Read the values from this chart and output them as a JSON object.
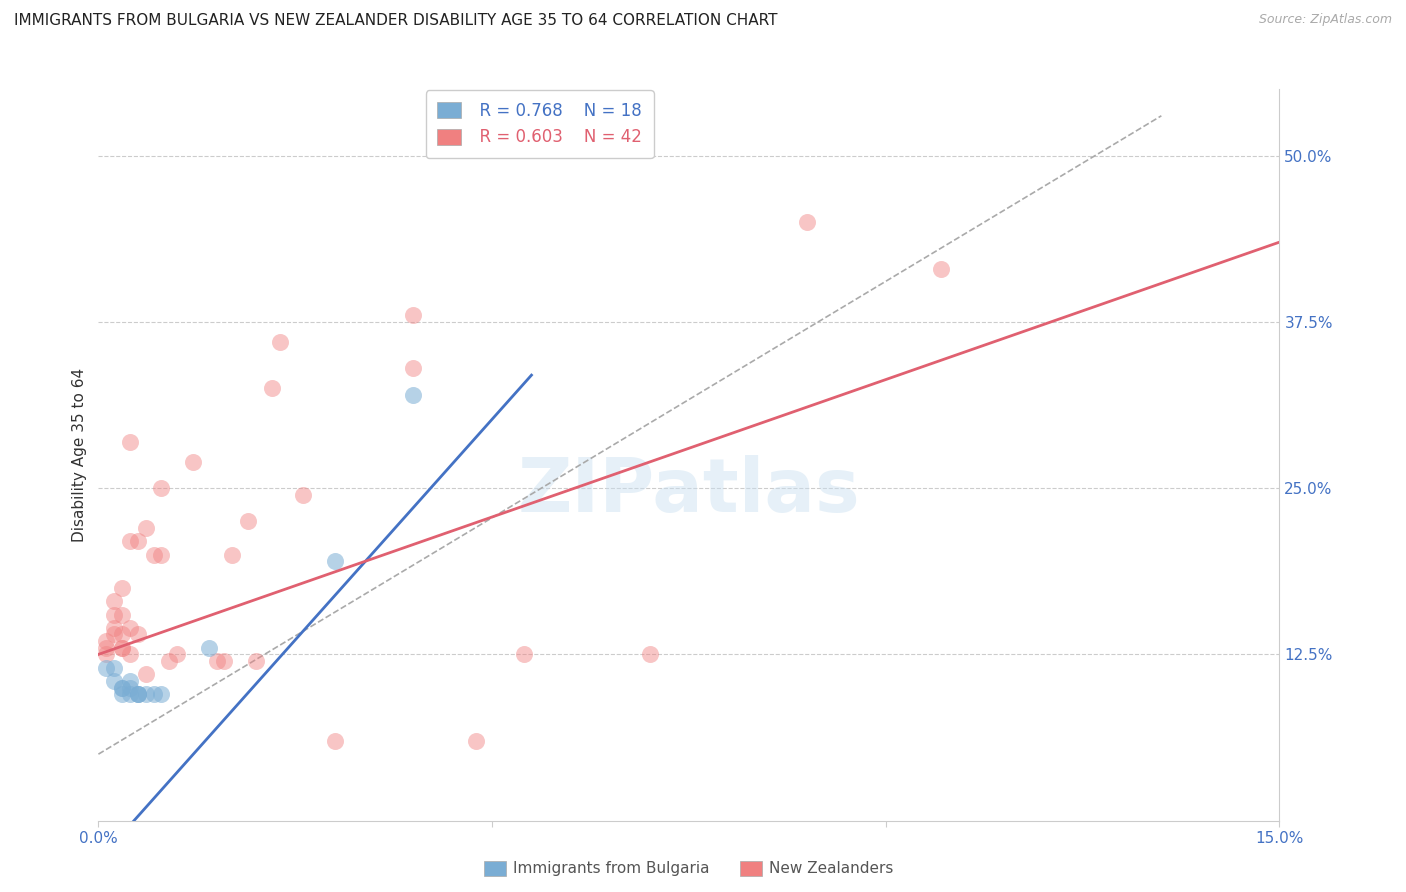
{
  "title": "IMMIGRANTS FROM BULGARIA VS NEW ZEALANDER DISABILITY AGE 35 TO 64 CORRELATION CHART",
  "source": "Source: ZipAtlas.com",
  "ylabel": "Disability Age 35 to 64",
  "xlim": [
    0.0,
    0.15
  ],
  "ylim": [
    0.0,
    0.55
  ],
  "x_ticks": [
    0.0,
    0.05,
    0.1,
    0.15
  ],
  "x_tick_labels": [
    "0.0%",
    "",
    "",
    "15.0%"
  ],
  "y_ticks_right": [
    0.0,
    0.125,
    0.25,
    0.375,
    0.5
  ],
  "y_tick_labels_right": [
    "",
    "12.5%",
    "25.0%",
    "37.5%",
    "50.0%"
  ],
  "legend_r1": "R = 0.768",
  "legend_n1": "N = 18",
  "legend_r2": "R = 0.603",
  "legend_n2": "N = 42",
  "legend_label1": "Immigrants from Bulgaria",
  "legend_label2": "New Zealanders",
  "blue_color": "#7aadd4",
  "pink_color": "#f08080",
  "blue_line_color": "#4472c4",
  "pink_line_color": "#e06070",
  "blue_scatter": [
    [
      0.001,
      0.115
    ],
    [
      0.002,
      0.115
    ],
    [
      0.002,
      0.105
    ],
    [
      0.003,
      0.1
    ],
    [
      0.003,
      0.1
    ],
    [
      0.003,
      0.095
    ],
    [
      0.004,
      0.105
    ],
    [
      0.004,
      0.1
    ],
    [
      0.004,
      0.095
    ],
    [
      0.005,
      0.095
    ],
    [
      0.005,
      0.095
    ],
    [
      0.005,
      0.095
    ],
    [
      0.006,
      0.095
    ],
    [
      0.007,
      0.095
    ],
    [
      0.008,
      0.095
    ],
    [
      0.014,
      0.13
    ],
    [
      0.03,
      0.195
    ],
    [
      0.04,
      0.32
    ]
  ],
  "pink_scatter": [
    [
      0.001,
      0.13
    ],
    [
      0.001,
      0.125
    ],
    [
      0.001,
      0.135
    ],
    [
      0.002,
      0.155
    ],
    [
      0.002,
      0.14
    ],
    [
      0.002,
      0.145
    ],
    [
      0.002,
      0.165
    ],
    [
      0.003,
      0.13
    ],
    [
      0.003,
      0.13
    ],
    [
      0.003,
      0.14
    ],
    [
      0.003,
      0.155
    ],
    [
      0.003,
      0.175
    ],
    [
      0.004,
      0.125
    ],
    [
      0.004,
      0.145
    ],
    [
      0.004,
      0.21
    ],
    [
      0.004,
      0.285
    ],
    [
      0.005,
      0.14
    ],
    [
      0.005,
      0.21
    ],
    [
      0.006,
      0.11
    ],
    [
      0.006,
      0.22
    ],
    [
      0.007,
      0.2
    ],
    [
      0.008,
      0.2
    ],
    [
      0.008,
      0.25
    ],
    [
      0.009,
      0.12
    ],
    [
      0.01,
      0.125
    ],
    [
      0.012,
      0.27
    ],
    [
      0.015,
      0.12
    ],
    [
      0.016,
      0.12
    ],
    [
      0.017,
      0.2
    ],
    [
      0.019,
      0.225
    ],
    [
      0.02,
      0.12
    ],
    [
      0.022,
      0.325
    ],
    [
      0.023,
      0.36
    ],
    [
      0.026,
      0.245
    ],
    [
      0.03,
      0.06
    ],
    [
      0.04,
      0.34
    ],
    [
      0.04,
      0.38
    ],
    [
      0.048,
      0.06
    ],
    [
      0.054,
      0.125
    ],
    [
      0.07,
      0.125
    ],
    [
      0.09,
      0.45
    ],
    [
      0.107,
      0.415
    ]
  ],
  "blue_line": [
    [
      0.0,
      -0.03
    ],
    [
      0.055,
      0.335
    ]
  ],
  "pink_line": [
    [
      0.0,
      0.125
    ],
    [
      0.15,
      0.435
    ]
  ],
  "diag_line": [
    [
      0.0,
      0.05
    ],
    [
      0.135,
      0.53
    ]
  ],
  "watermark": "ZIPatlas",
  "title_fontsize": 11,
  "right_tick_color": "#4472c4",
  "bottom_tick_color": "#4472c4",
  "grid_color": "#cccccc"
}
